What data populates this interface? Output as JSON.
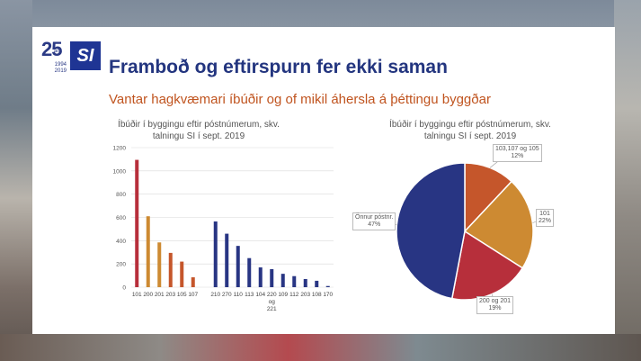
{
  "slide": {
    "logo": {
      "years_mark": "25",
      "ara": "ára",
      "year_start": "1994",
      "year_end": "2019",
      "brand": "SI"
    },
    "title": "Framboð og eftirspurn fer ekki saman",
    "subtitle": "Vantar hagkvæmari íbúðir og of mikil áhersla á þéttingu byggðar",
    "colors": {
      "title": "#23357f",
      "subtitle": "#c0541f"
    }
  },
  "chart_data": [
    {
      "type": "bar",
      "title": "Íbúðir í byggingu eftir póstnúmerum, skv. talningu SI í sept. 2019",
      "categories": [
        "101",
        "200",
        "201",
        "203",
        "105",
        "107",
        "",
        "210",
        "270",
        "110",
        "113",
        "104",
        "220",
        "109",
        "112",
        "203",
        "108",
        "170"
      ],
      "category_lines": [
        [
          "101"
        ],
        [
          "200"
        ],
        [
          "201"
        ],
        [
          "203"
        ],
        [
          "105"
        ],
        [
          "107"
        ],
        [
          ""
        ],
        [
          "210"
        ],
        [
          "270"
        ],
        [
          "110"
        ],
        [
          "113"
        ],
        [
          "104"
        ],
        [
          "220",
          "og",
          "221"
        ],
        [
          "109"
        ],
        [
          "112"
        ],
        [
          "203"
        ],
        [
          "108"
        ],
        [
          "170"
        ]
      ],
      "values": [
        1095,
        610,
        385,
        295,
        220,
        85,
        0,
        565,
        460,
        355,
        250,
        170,
        155,
        115,
        95,
        70,
        55,
        10
      ],
      "colors": [
        "#b72f3b",
        "#cd8a32",
        "#cd8a32",
        "#c5562b",
        "#c5562b",
        "#c5562b",
        "#ffffff",
        "#283583",
        "#283583",
        "#283583",
        "#283583",
        "#283583",
        "#283583",
        "#283583",
        "#283583",
        "#283583",
        "#283583",
        "#283583"
      ],
      "ylim": [
        0,
        1200
      ],
      "yticks": [
        0,
        200,
        400,
        600,
        800,
        1000,
        1200
      ],
      "grid": true
    },
    {
      "type": "pie",
      "title": "Íbúðir í byggingu eftir póstnúmerum, skv. talningu SI í sept. 2019",
      "slices": [
        {
          "label": "103,107 og 105",
          "value": 12,
          "pct_text": "12%",
          "color": "#c5562b"
        },
        {
          "label": "101",
          "value": 22,
          "pct_text": "22%",
          "color": "#cd8a32"
        },
        {
          "label": "200 og 201",
          "value": 19,
          "pct_text": "19%",
          "color": "#b72f3b"
        },
        {
          "label": "Önnur póstnr.",
          "value": 47,
          "pct_text": "47%",
          "color": "#283583"
        }
      ]
    }
  ]
}
